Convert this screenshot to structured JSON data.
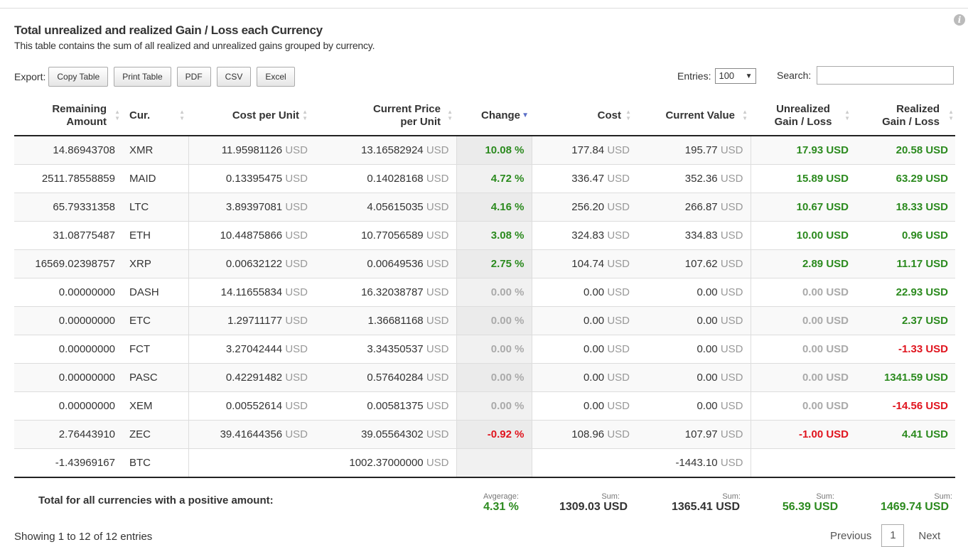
{
  "title": "Total unrealized and realized Gain / Loss each Currency",
  "subtitle": "This table contains the sum of all realized and unrealized gains grouped by currency.",
  "info_icon": "i",
  "export": {
    "label": "Export:",
    "buttons": [
      "Copy Table",
      "Print Table",
      "PDF",
      "CSV",
      "Excel"
    ]
  },
  "entries": {
    "label": "Entries:",
    "value": "100"
  },
  "search": {
    "label": "Search:",
    "value": ""
  },
  "columns": [
    {
      "line1": "Remaining",
      "line2": "Amount"
    },
    {
      "line1": "Cur.",
      "line2": ""
    },
    {
      "line1": "Cost per Unit",
      "line2": ""
    },
    {
      "line1": "Current Price",
      "line2": "per Unit"
    },
    {
      "line1": "Change",
      "line2": ""
    },
    {
      "line1": "Cost",
      "line2": ""
    },
    {
      "line1": "Current Value",
      "line2": ""
    },
    {
      "line1": "Unrealized",
      "line2": "Gain / Loss"
    },
    {
      "line1": "Realized",
      "line2": "Gain / Loss"
    }
  ],
  "unit": "USD",
  "rows": [
    {
      "amount": "14.86943708",
      "cur": "XMR",
      "cost_unit": "11.95981126",
      "price_unit": "13.16582924",
      "change": "10.08 %",
      "change_c": "green",
      "cost": "177.84",
      "value": "195.77",
      "unreal": "17.93 USD",
      "unreal_c": "green",
      "real": "20.58 USD",
      "real_c": "green"
    },
    {
      "amount": "2511.78558859",
      "cur": "MAID",
      "cost_unit": "0.13395475",
      "price_unit": "0.14028168",
      "change": "4.72 %",
      "change_c": "green",
      "cost": "336.47",
      "value": "352.36",
      "unreal": "15.89 USD",
      "unreal_c": "green",
      "real": "63.29 USD",
      "real_c": "green"
    },
    {
      "amount": "65.79331358",
      "cur": "LTC",
      "cost_unit": "3.89397081",
      "price_unit": "4.05615035",
      "change": "4.16 %",
      "change_c": "green",
      "cost": "256.20",
      "value": "266.87",
      "unreal": "10.67 USD",
      "unreal_c": "green",
      "real": "18.33 USD",
      "real_c": "green"
    },
    {
      "amount": "31.08775487",
      "cur": "ETH",
      "cost_unit": "10.44875866",
      "price_unit": "10.77056589",
      "change": "3.08 %",
      "change_c": "green",
      "cost": "324.83",
      "value": "334.83",
      "unreal": "10.00 USD",
      "unreal_c": "green",
      "real": "0.96 USD",
      "real_c": "green"
    },
    {
      "amount": "16569.02398757",
      "cur": "XRP",
      "cost_unit": "0.00632122",
      "price_unit": "0.00649536",
      "change": "2.75 %",
      "change_c": "green",
      "cost": "104.74",
      "value": "107.62",
      "unreal": "2.89 USD",
      "unreal_c": "green",
      "real": "11.17 USD",
      "real_c": "green"
    },
    {
      "amount": "0.00000000",
      "cur": "DASH",
      "cost_unit": "14.11655834",
      "price_unit": "16.32038787",
      "change": "0.00 %",
      "change_c": "grey",
      "cost": "0.00",
      "value": "0.00",
      "unreal": "0.00 USD",
      "unreal_c": "grey",
      "real": "22.93 USD",
      "real_c": "green"
    },
    {
      "amount": "0.00000000",
      "cur": "ETC",
      "cost_unit": "1.29711177",
      "price_unit": "1.36681168",
      "change": "0.00 %",
      "change_c": "grey",
      "cost": "0.00",
      "value": "0.00",
      "unreal": "0.00 USD",
      "unreal_c": "grey",
      "real": "2.37 USD",
      "real_c": "green"
    },
    {
      "amount": "0.00000000",
      "cur": "FCT",
      "cost_unit": "3.27042444",
      "price_unit": "3.34350537",
      "change": "0.00 %",
      "change_c": "grey",
      "cost": "0.00",
      "value": "0.00",
      "unreal": "0.00 USD",
      "unreal_c": "grey",
      "real": "-1.33 USD",
      "real_c": "red"
    },
    {
      "amount": "0.00000000",
      "cur": "PASC",
      "cost_unit": "0.42291482",
      "price_unit": "0.57640284",
      "change": "0.00 %",
      "change_c": "grey",
      "cost": "0.00",
      "value": "0.00",
      "unreal": "0.00 USD",
      "unreal_c": "grey",
      "real": "1341.59 USD",
      "real_c": "green"
    },
    {
      "amount": "0.00000000",
      "cur": "XEM",
      "cost_unit": "0.00552614",
      "price_unit": "0.00581375",
      "change": "0.00 %",
      "change_c": "grey",
      "cost": "0.00",
      "value": "0.00",
      "unreal": "0.00 USD",
      "unreal_c": "grey",
      "real": "-14.56 USD",
      "real_c": "red"
    },
    {
      "amount": "2.76443910",
      "cur": "ZEC",
      "cost_unit": "39.41644356",
      "price_unit": "39.05564302",
      "change": "-0.92 %",
      "change_c": "red",
      "cost": "108.96",
      "value": "107.97",
      "unreal": "-1.00 USD",
      "unreal_c": "red",
      "real": "4.41 USD",
      "real_c": "green"
    },
    {
      "amount": "-1.43969167",
      "cur": "BTC",
      "cost_unit": "",
      "price_unit": "1002.37000000",
      "change": "",
      "change_c": "grey",
      "cost": "",
      "value": "-1443.10",
      "unreal": "",
      "unreal_c": "grey",
      "real": "",
      "real_c": "grey"
    }
  ],
  "footer": {
    "label": "Total for all currencies with a positive amount:",
    "avg_label": "Avgerage:",
    "avg_value": "4.31 %",
    "sum_label": "Sum:",
    "cost_sum": "1309.03 USD",
    "value_sum": "1365.41 USD",
    "unreal_sum": "56.39 USD",
    "real_sum": "1469.74 USD"
  },
  "showing": "Showing 1 to 12 of 12 entries",
  "pager": {
    "previous": "Previous",
    "page": "1",
    "next": "Next"
  },
  "colors": {
    "green": "#2b8a1e",
    "red": "#e0141e",
    "grey": "#aaaaaa",
    "sort_active": "#5b6fc7"
  }
}
